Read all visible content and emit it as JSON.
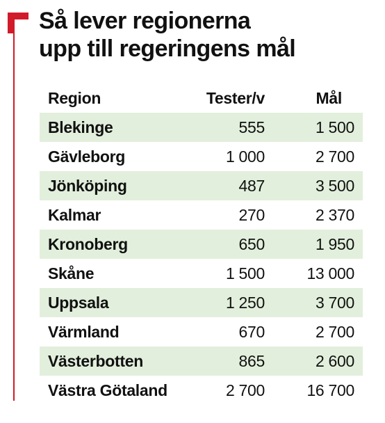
{
  "title": {
    "line1": "Så lever regionerna",
    "line2": "upp till regeringens mål"
  },
  "colors": {
    "accent": "#d11a2a",
    "row_shade": "#e2efdc",
    "text": "#111111"
  },
  "table": {
    "headers": {
      "region": "Region",
      "tests": "Tester/v",
      "goal": "Mål"
    },
    "rows": [
      {
        "region": "Blekinge",
        "tests": "555",
        "goal": "1 500"
      },
      {
        "region": "Gävleborg",
        "tests": "1 000",
        "goal": "2 700"
      },
      {
        "region": "Jönköping",
        "tests": "487",
        "goal": "3 500"
      },
      {
        "region": "Kalmar",
        "tests": "270",
        "goal": "2 370"
      },
      {
        "region": "Kronoberg",
        "tests": "650",
        "goal": "1 950"
      },
      {
        "region": "Skåne",
        "tests": "1 500",
        "goal": "13 000"
      },
      {
        "region": "Uppsala",
        "tests": "1 250",
        "goal": "3 700"
      },
      {
        "region": "Värmland",
        "tests": "670",
        "goal": "2 700"
      },
      {
        "region": "Västerbotten",
        "tests": "865",
        "goal": "2 600"
      },
      {
        "region": "Västra Götaland",
        "tests": "2 700",
        "goal": "16 700"
      }
    ]
  }
}
